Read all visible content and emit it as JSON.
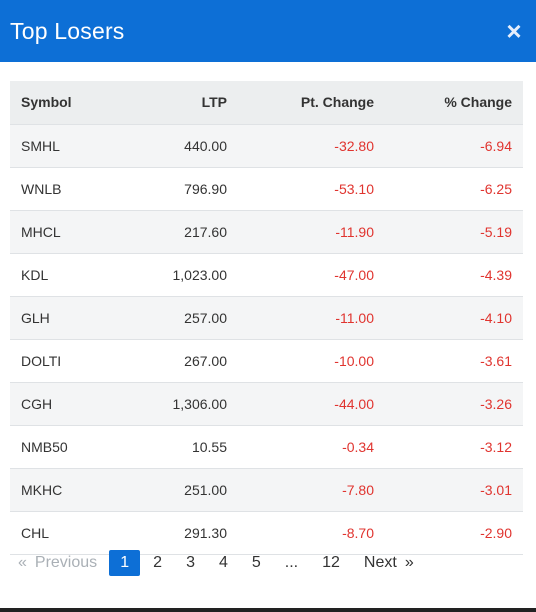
{
  "header": {
    "title": "Top Losers",
    "close_glyph": "×"
  },
  "table": {
    "columns": [
      "Symbol",
      "LTP",
      "Pt. Change",
      "% Change"
    ],
    "rows": [
      {
        "symbol": "SMHL",
        "ltp": "440.00",
        "pt": "-32.80",
        "pct": "-6.94"
      },
      {
        "symbol": "WNLB",
        "ltp": "796.90",
        "pt": "-53.10",
        "pct": "-6.25"
      },
      {
        "symbol": "MHCL",
        "ltp": "217.60",
        "pt": "-11.90",
        "pct": "-5.19"
      },
      {
        "symbol": "KDL",
        "ltp": "1,023.00",
        "pt": "-47.00",
        "pct": "-4.39"
      },
      {
        "symbol": "GLH",
        "ltp": "257.00",
        "pt": "-11.00",
        "pct": "-4.10"
      },
      {
        "symbol": "DOLTI",
        "ltp": "267.00",
        "pt": "-10.00",
        "pct": "-3.61"
      },
      {
        "symbol": "CGH",
        "ltp": "1,306.00",
        "pt": "-44.00",
        "pct": "-3.26"
      },
      {
        "symbol": "NMB50",
        "ltp": "10.55",
        "pt": "-0.34",
        "pct": "-3.12"
      },
      {
        "symbol": "MKHC",
        "ltp": "251.00",
        "pt": "-7.80",
        "pct": "-3.01"
      },
      {
        "symbol": "CHL",
        "ltp": "291.30",
        "pt": "-8.70",
        "pct": "-2.90"
      }
    ]
  },
  "pagination": {
    "prev_arrow": "«",
    "prev_label": "Previous",
    "pages": [
      "1",
      "2",
      "3",
      "4",
      "5",
      "...",
      "12"
    ],
    "current_page": "1",
    "next_label": "Next",
    "next_arrow": "»"
  },
  "colors": {
    "header_bg": "#0d6fd6",
    "negative": "#e0342f",
    "active_page": "#0d6fd6"
  }
}
